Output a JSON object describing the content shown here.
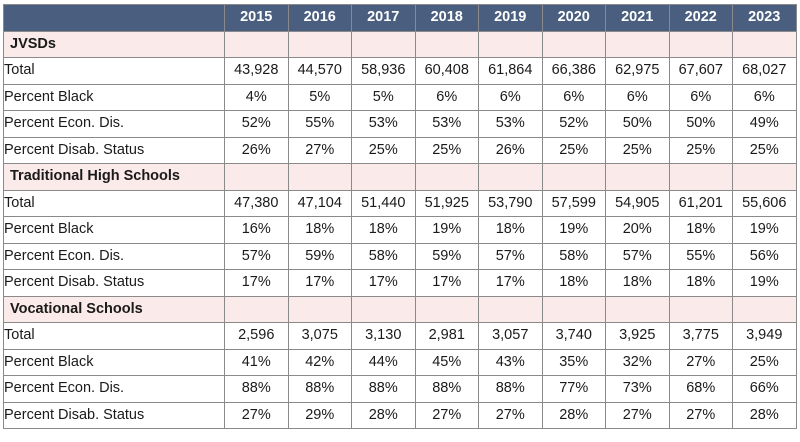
{
  "header": {
    "corner": "",
    "years": [
      "2015",
      "2016",
      "2017",
      "2018",
      "2019",
      "2020",
      "2021",
      "2022",
      "2023"
    ]
  },
  "colors": {
    "header_bg": "#4a5f80",
    "header_text": "#ffffff",
    "group_bg": "#fbeaea",
    "border": "#8a8a8a"
  },
  "groups": [
    {
      "name": "JVSDs",
      "rows": [
        {
          "label": "Total",
          "values": [
            "43,928",
            "44,570",
            "58,936",
            "60,408",
            "61,864",
            "66,386",
            "62,975",
            "67,607",
            "68,027"
          ]
        },
        {
          "label": "Percent Black",
          "values": [
            "4%",
            "5%",
            "5%",
            "6%",
            "6%",
            "6%",
            "6%",
            "6%",
            "6%"
          ]
        },
        {
          "label": "Percent Econ. Dis.",
          "values": [
            "52%",
            "55%",
            "53%",
            "53%",
            "53%",
            "52%",
            "50%",
            "50%",
            "49%"
          ]
        },
        {
          "label": "Percent Disab. Status",
          "values": [
            "26%",
            "27%",
            "25%",
            "25%",
            "26%",
            "25%",
            "25%",
            "25%",
            "25%"
          ]
        }
      ]
    },
    {
      "name": "Traditional High Schools",
      "rows": [
        {
          "label": "Total",
          "values": [
            "47,380",
            "47,104",
            "51,440",
            "51,925",
            "53,790",
            "57,599",
            "54,905",
            "61,201",
            "55,606"
          ]
        },
        {
          "label": "Percent Black",
          "values": [
            "16%",
            "18%",
            "18%",
            "19%",
            "18%",
            "19%",
            "20%",
            "18%",
            "19%"
          ]
        },
        {
          "label": "Percent Econ. Dis.",
          "values": [
            "57%",
            "59%",
            "58%",
            "59%",
            "57%",
            "58%",
            "57%",
            "55%",
            "56%"
          ]
        },
        {
          "label": "Percent Disab. Status",
          "values": [
            "17%",
            "17%",
            "17%",
            "17%",
            "17%",
            "18%",
            "18%",
            "18%",
            "19%"
          ]
        }
      ]
    },
    {
      "name": "Vocational Schools",
      "rows": [
        {
          "label": "Total",
          "values": [
            "2,596",
            "3,075",
            "3,130",
            "2,981",
            "3,057",
            "3,740",
            "3,925",
            "3,775",
            "3,949"
          ]
        },
        {
          "label": "Percent Black",
          "values": [
            "41%",
            "42%",
            "44%",
            "45%",
            "43%",
            "35%",
            "32%",
            "27%",
            "25%"
          ]
        },
        {
          "label": "Percent Econ. Dis.",
          "values": [
            "88%",
            "88%",
            "88%",
            "88%",
            "88%",
            "77%",
            "73%",
            "68%",
            "66%"
          ]
        },
        {
          "label": "Percent Disab. Status",
          "values": [
            "27%",
            "29%",
            "28%",
            "27%",
            "27%",
            "28%",
            "27%",
            "27%",
            "28%"
          ]
        }
      ]
    }
  ]
}
